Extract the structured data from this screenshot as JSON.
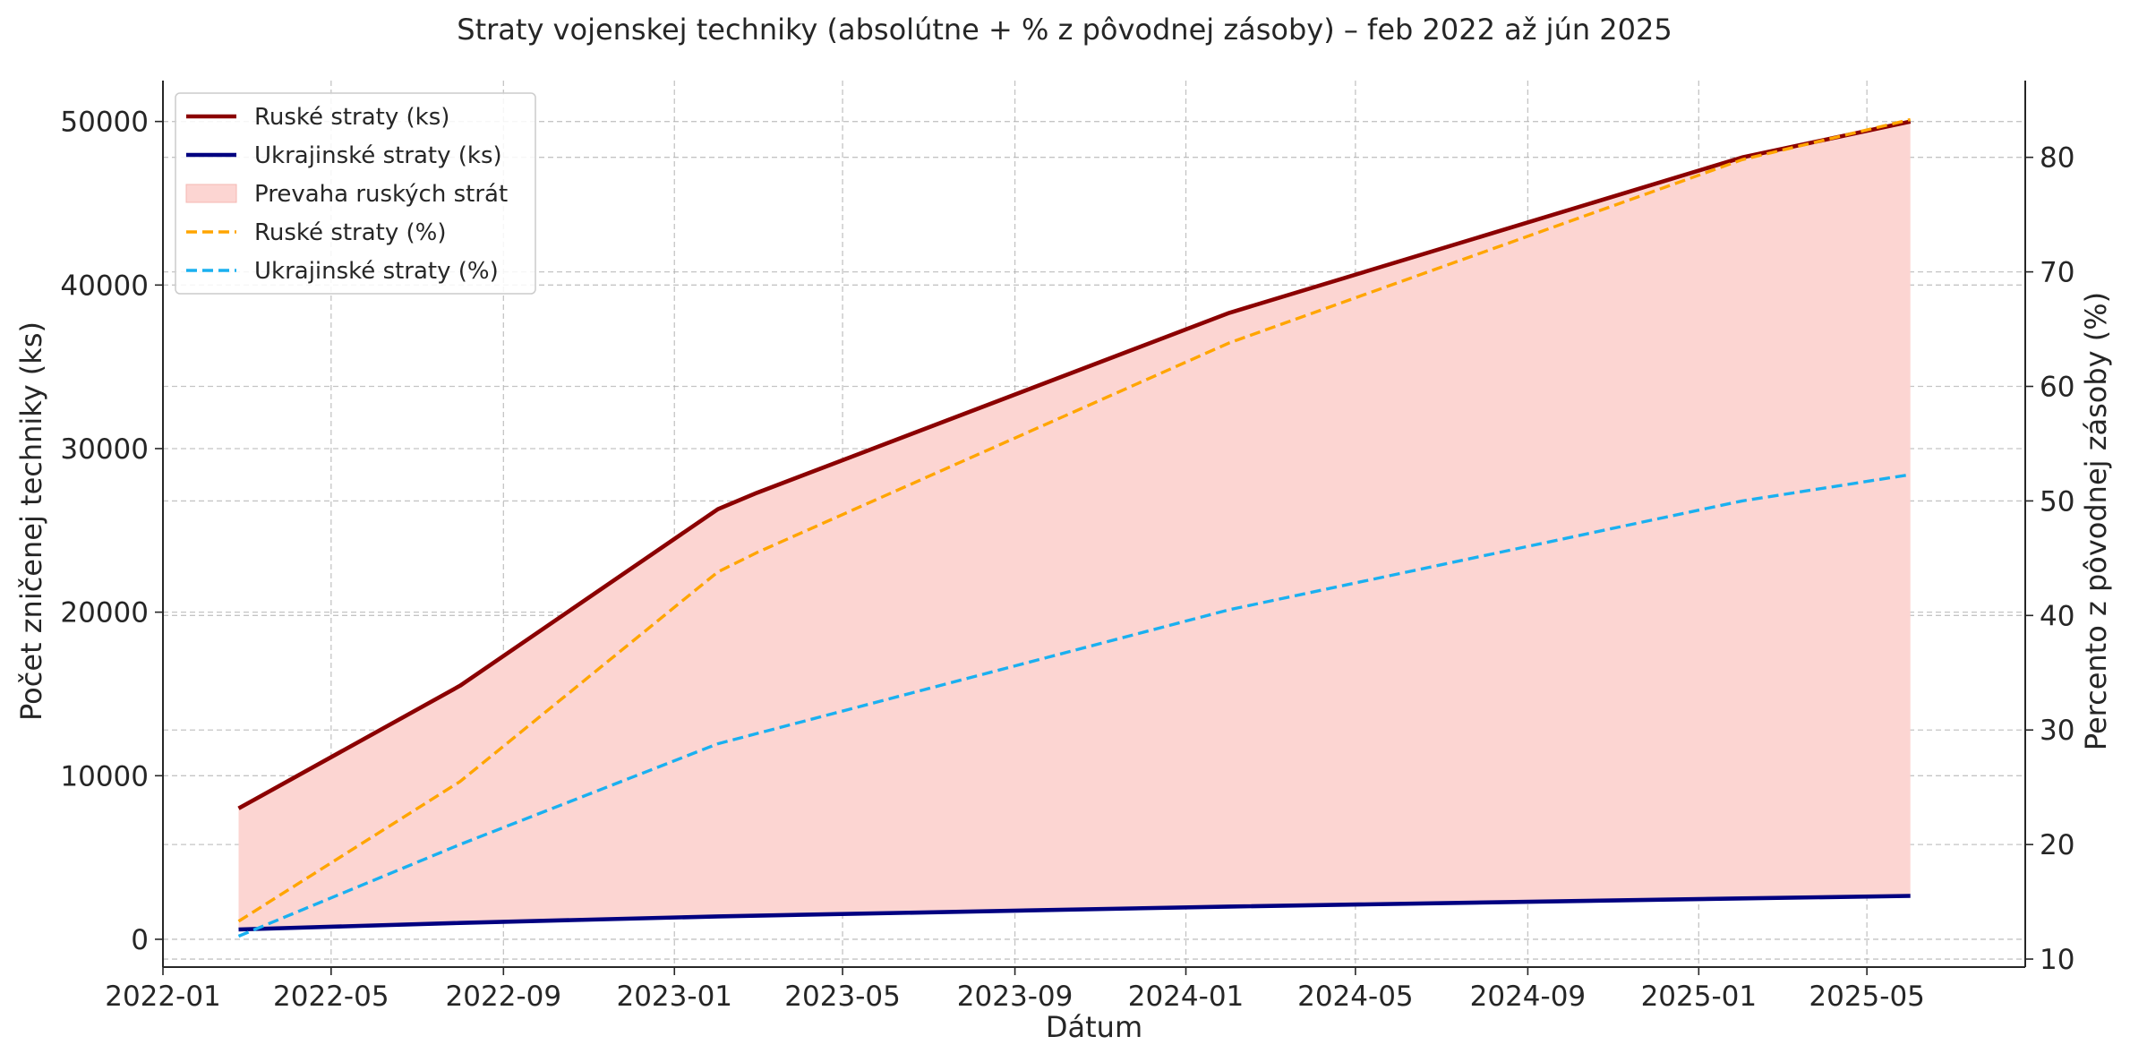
{
  "chart_data": {
    "type": "line",
    "title": "Straty vojenskej techniky (absolútne + % z pôvodnej zásoby) – feb 2022 až jún 2025",
    "xlabel": "Dátum",
    "ylabel": "Počet zničenej techniky (ks)",
    "ylabel_right": "Percento z pôvodnej zásoby (%)",
    "xlim": [
      "2022-01-01",
      "2025-08-22"
    ],
    "ylim": [
      -1700,
      52500
    ],
    "ylim_right": [
      9.3,
      86.7
    ],
    "x_ticks": [
      "2022-01",
      "2022-05",
      "2022-09",
      "2023-01",
      "2023-05",
      "2023-09",
      "2024-01",
      "2024-05",
      "2024-09",
      "2025-01",
      "2025-05"
    ],
    "y_ticks": [
      0,
      10000,
      20000,
      30000,
      40000,
      50000
    ],
    "y_ticks_right": [
      10,
      20,
      30,
      40,
      50,
      60,
      70,
      80
    ],
    "grid": true,
    "legend_position": "top-left",
    "legend": [
      "Ruské straty (ks)",
      "Ukrajinské straty (ks)",
      "Prevaha ruských strát",
      "Ruské straty (%)",
      "Ukrajinské straty (%)"
    ],
    "series": [
      {
        "name": "Ruské straty (ks)",
        "axis": "left",
        "color": "#8b0000",
        "style": "solid",
        "points": [
          [
            "2022-02-24",
            8000
          ],
          [
            "2022-08-01",
            15500
          ],
          [
            "2023-02-01",
            26300
          ],
          [
            "2023-03-01",
            27300
          ],
          [
            "2024-02-01",
            38300
          ],
          [
            "2025-02-01",
            47800
          ],
          [
            "2025-06-01",
            50000
          ]
        ]
      },
      {
        "name": "Ukrajinské straty (ks)",
        "axis": "left",
        "color": "#000080",
        "style": "solid",
        "points": [
          [
            "2022-02-24",
            600
          ],
          [
            "2022-08-01",
            1000
          ],
          [
            "2023-02-01",
            1400
          ],
          [
            "2024-02-01",
            2000
          ],
          [
            "2025-02-01",
            2500
          ],
          [
            "2025-06-01",
            2650
          ]
        ]
      },
      {
        "name": "Ruské straty (%)",
        "axis": "right",
        "color": "#ffa500",
        "style": "dashed",
        "points": [
          [
            "2022-02-24",
            13.3
          ],
          [
            "2022-08-01",
            25.5
          ],
          [
            "2023-02-01",
            43.8
          ],
          [
            "2023-03-01",
            45.5
          ],
          [
            "2024-02-01",
            63.8
          ],
          [
            "2025-02-01",
            79.8
          ],
          [
            "2025-06-01",
            83.3
          ]
        ]
      },
      {
        "name": "Ukrajinské straty (%)",
        "axis": "right",
        "color": "#1ab0f0",
        "style": "dashed",
        "points": [
          [
            "2022-02-24",
            12.0
          ],
          [
            "2022-08-01",
            20.0
          ],
          [
            "2023-02-01",
            28.8
          ],
          [
            "2024-02-01",
            40.5
          ],
          [
            "2025-02-01",
            50.0
          ],
          [
            "2025-06-01",
            52.3
          ]
        ]
      }
    ],
    "fill_between": {
      "name": "Prevaha ruských strát",
      "color": "#fcd5d2",
      "upper": "Ruské straty (ks)",
      "lower": "Ukrajinské straty (ks)"
    }
  }
}
